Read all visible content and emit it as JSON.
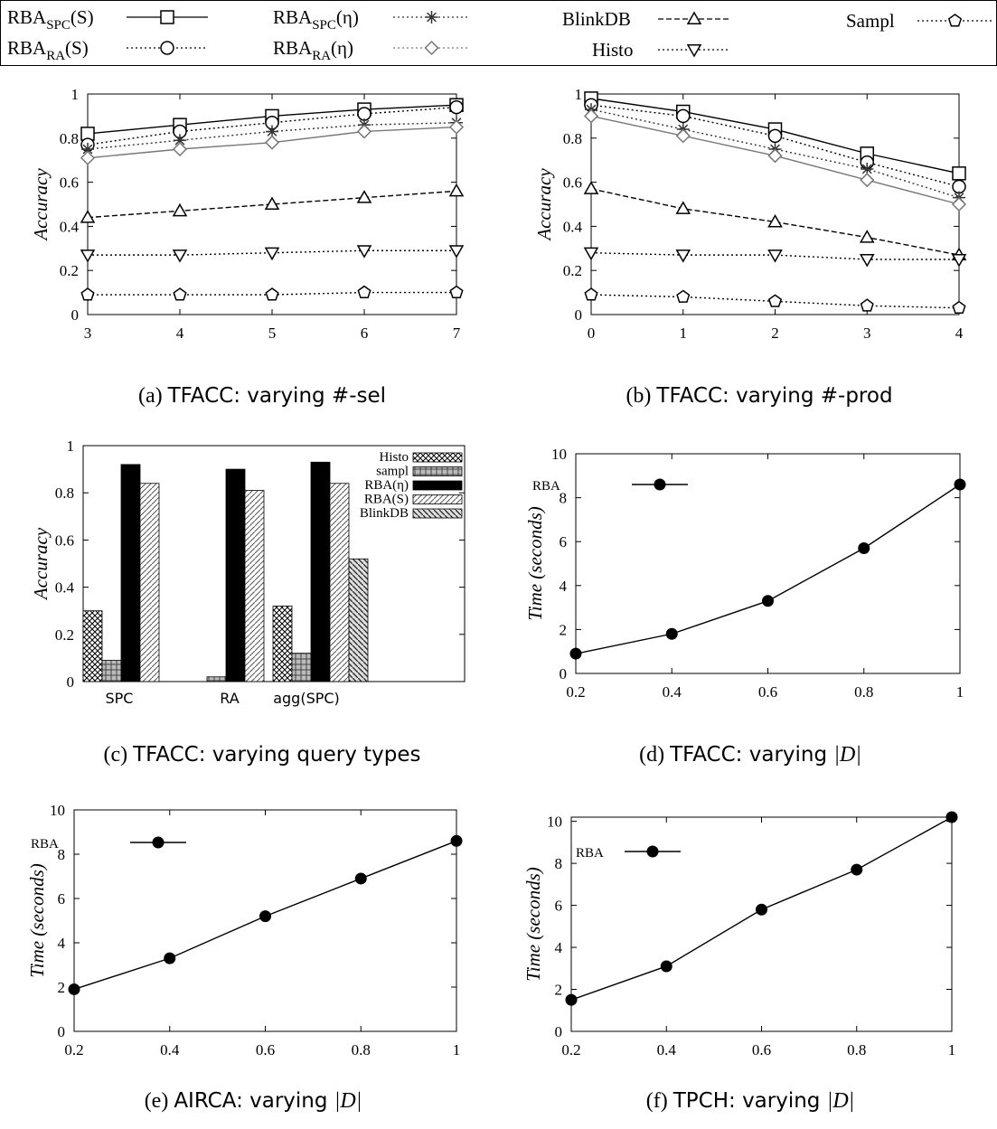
{
  "legend": {
    "entries": [
      {
        "base": "RBA",
        "sub": "SPC",
        "arg": "(S)",
        "marker": "square",
        "dash": "solid"
      },
      {
        "base": "RBA",
        "sub": "RA",
        "arg": "(S)",
        "marker": "circle",
        "dash": "dot"
      },
      {
        "base": "RBA",
        "sub": "SPC",
        "arg": "(η)",
        "marker": "star",
        "dash": "dot"
      },
      {
        "base": "RBA",
        "sub": "RA",
        "arg": "(η)",
        "marker": "diamond",
        "dash": "dot"
      },
      {
        "base": "BlinkDB",
        "sub": "",
        "arg": "",
        "marker": "triangle",
        "dash": "dash"
      },
      {
        "base": "Histo",
        "sub": "",
        "arg": "",
        "marker": "triangle-down",
        "dash": "dot"
      },
      {
        "base": "Sampl",
        "sub": "",
        "arg": "",
        "marker": "pentagon",
        "dash": "dot"
      }
    ]
  },
  "captions": {
    "a": {
      "prefix": "(a)",
      "main": "TFACC: varying #-sel",
      "math": ""
    },
    "b": {
      "prefix": "(b)",
      "main": "TFACC: varying #-prod",
      "math": ""
    },
    "c": {
      "prefix": "(c)",
      "main": "TFACC: varying query types",
      "math": ""
    },
    "d": {
      "prefix": "(d)",
      "main": "TFACC: varying ",
      "math": "|D|"
    },
    "e": {
      "prefix": "(e)",
      "main": "AIRCA: varying ",
      "math": "|D|"
    },
    "f": {
      "prefix": "(f)",
      "main": "TPCH: varying ",
      "math": "|D|"
    }
  },
  "chart_data": [
    {
      "id": "a",
      "type": "line",
      "ylabel": "Accuracy",
      "xlabel": "",
      "x": [
        3,
        4,
        5,
        6,
        7
      ],
      "xlim": [
        3,
        7
      ],
      "ylim": [
        0,
        1
      ],
      "xticks": [
        "3",
        "4",
        "5",
        "6",
        "7"
      ],
      "yticks": [
        "0",
        "0.2",
        "0.4",
        "0.6",
        "0.8",
        "1"
      ],
      "series": [
        {
          "marker": "square",
          "color": "#000000",
          "dash": "solid",
          "values": [
            0.82,
            0.86,
            0.9,
            0.93,
            0.95
          ]
        },
        {
          "marker": "circle",
          "color": "#000000",
          "dash": "dot",
          "values": [
            0.77,
            0.83,
            0.87,
            0.91,
            0.94
          ]
        },
        {
          "marker": "star",
          "color": "#333333",
          "dash": "dot",
          "values": [
            0.75,
            0.79,
            0.83,
            0.86,
            0.87
          ]
        },
        {
          "marker": "diamond",
          "color": "#777777",
          "dash": "solid",
          "values": [
            0.71,
            0.75,
            0.78,
            0.83,
            0.85
          ]
        },
        {
          "marker": "triangle",
          "color": "#000000",
          "dash": "dash",
          "values": [
            0.44,
            0.47,
            0.5,
            0.53,
            0.56
          ]
        },
        {
          "marker": "triangle-down",
          "color": "#000000",
          "dash": "dot",
          "values": [
            0.27,
            0.27,
            0.28,
            0.29,
            0.29
          ]
        },
        {
          "marker": "pentagon",
          "color": "#000000",
          "dash": "dot",
          "values": [
            0.09,
            0.09,
            0.09,
            0.1,
            0.1
          ]
        }
      ]
    },
    {
      "id": "b",
      "type": "line",
      "ylabel": "Accuracy",
      "xlabel": "",
      "x": [
        0,
        1,
        2,
        3,
        4
      ],
      "xlim": [
        0,
        4
      ],
      "ylim": [
        0,
        1
      ],
      "xticks": [
        "0",
        "1",
        "2",
        "3",
        "4"
      ],
      "yticks": [
        "0",
        "0.2",
        "0.4",
        "0.6",
        "0.8",
        "1"
      ],
      "series": [
        {
          "marker": "square",
          "color": "#000000",
          "dash": "solid",
          "values": [
            0.98,
            0.92,
            0.84,
            0.73,
            0.64
          ]
        },
        {
          "marker": "circle",
          "color": "#000000",
          "dash": "dot",
          "values": [
            0.95,
            0.9,
            0.81,
            0.69,
            0.58
          ]
        },
        {
          "marker": "star",
          "color": "#333333",
          "dash": "dot",
          "values": [
            0.93,
            0.84,
            0.75,
            0.66,
            0.53
          ]
        },
        {
          "marker": "diamond",
          "color": "#777777",
          "dash": "solid",
          "values": [
            0.9,
            0.81,
            0.72,
            0.61,
            0.5
          ]
        },
        {
          "marker": "triangle",
          "color": "#000000",
          "dash": "dash",
          "values": [
            0.57,
            0.48,
            0.42,
            0.35,
            0.27
          ]
        },
        {
          "marker": "triangle-down",
          "color": "#000000",
          "dash": "dot",
          "values": [
            0.28,
            0.27,
            0.27,
            0.25,
            0.25
          ]
        },
        {
          "marker": "pentagon",
          "color": "#000000",
          "dash": "dot",
          "values": [
            0.09,
            0.08,
            0.06,
            0.04,
            0.03
          ]
        }
      ]
    },
    {
      "id": "c",
      "type": "bar",
      "ylabel": "Accuracy",
      "xlabel": "",
      "categories": [
        "SPC",
        "RA",
        "agg(SPC)"
      ],
      "ylim": [
        0,
        1
      ],
      "yticks": [
        "0",
        "0.2",
        "0.4",
        "0.6",
        "0.8",
        "1"
      ],
      "legend_position": "top-right",
      "series": [
        {
          "name": "Histo",
          "pattern": "crosshatch",
          "values": [
            0.3,
            0.0,
            0.32
          ]
        },
        {
          "name": "sampl",
          "pattern": "dense",
          "values": [
            0.09,
            0.02,
            0.12
          ]
        },
        {
          "name": "RBA(η)",
          "pattern": "solid",
          "values": [
            0.92,
            0.9,
            0.93
          ]
        },
        {
          "name": "RBA(S)",
          "pattern": "diag-light",
          "values": [
            0.84,
            0.81,
            0.84
          ]
        },
        {
          "name": "BlinkDB",
          "pattern": "diag-dense",
          "values": [
            0.0,
            0.0,
            0.52
          ]
        }
      ]
    },
    {
      "id": "d",
      "type": "line",
      "ylabel": "Time (seconds)",
      "xlabel": "",
      "x": [
        0.2,
        0.4,
        0.6,
        0.8,
        1.0
      ],
      "xlim": [
        0.2,
        1
      ],
      "ylim": [
        0,
        10
      ],
      "xticks": [
        "0.2",
        "0.4",
        "0.6",
        "0.8",
        "1"
      ],
      "yticks": [
        "0",
        "2",
        "4",
        "6",
        "8",
        "10"
      ],
      "legend_position": "top-left",
      "series": [
        {
          "name": "RBA",
          "marker": "filled-circle",
          "color": "#000000",
          "dash": "solid",
          "values": [
            0.9,
            1.8,
            3.3,
            5.7,
            8.6
          ]
        }
      ]
    },
    {
      "id": "e",
      "type": "line",
      "ylabel": "Time (seconds)",
      "xlabel": "",
      "x": [
        0.2,
        0.4,
        0.6,
        0.8,
        1.0
      ],
      "xlim": [
        0.2,
        1
      ],
      "ylim": [
        0,
        10
      ],
      "xticks": [
        "0.2",
        "0.4",
        "0.6",
        "0.8",
        "1"
      ],
      "yticks": [
        "0",
        "2",
        "4",
        "6",
        "8",
        "10"
      ],
      "legend_position": "top-left",
      "series": [
        {
          "name": "RBA",
          "marker": "filled-circle",
          "color": "#000000",
          "dash": "solid",
          "values": [
            1.9,
            3.3,
            5.2,
            6.9,
            8.6
          ]
        }
      ]
    },
    {
      "id": "f",
      "type": "line",
      "ylabel": "Time (seconds)",
      "xlabel": "",
      "x": [
        0.2,
        0.4,
        0.6,
        0.8,
        1.0
      ],
      "xlim": [
        0.2,
        1
      ],
      "ylim": [
        0,
        10.2
      ],
      "xticks": [
        "0.2",
        "0.4",
        "0.6",
        "0.8",
        "1"
      ],
      "yticks": [
        "0",
        "2",
        "4",
        "6",
        "8",
        "10"
      ],
      "legend_position": "top-left",
      "series": [
        {
          "name": "RBA",
          "marker": "filled-circle",
          "color": "#000000",
          "dash": "solid",
          "values": [
            1.5,
            3.1,
            5.8,
            7.7,
            10.2
          ]
        }
      ]
    }
  ]
}
